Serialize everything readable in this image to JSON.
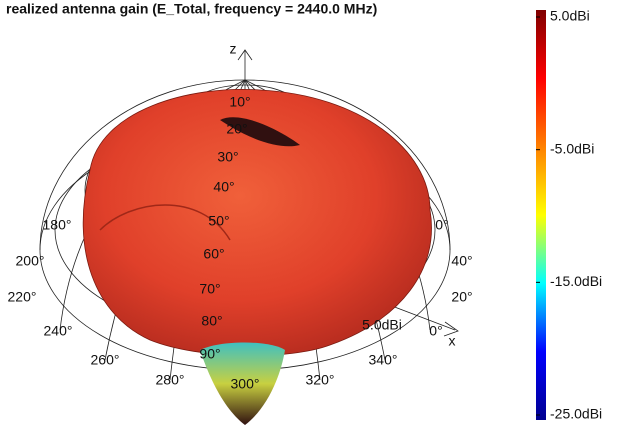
{
  "chart_data": {
    "type": "surface3d",
    "title": "realized antenna gain (E_Total, frequency = 2440.0 MHz)",
    "colorbar": {
      "lim": [
        -25,
        5
      ],
      "ticks": [
        {
          "value": 5,
          "label": "5.0dBi"
        },
        {
          "value": -5,
          "label": "-5.0dBi"
        },
        {
          "value": -15,
          "label": "-15.0dBi"
        },
        {
          "value": -25,
          "label": "-25.0dBi"
        }
      ],
      "colors": [
        "#00008f",
        "#0000ff",
        "#00ffff",
        "#ffff00",
        "#ff8000",
        "#ff0000",
        "#800000"
      ]
    },
    "theta_labels": [
      "10°",
      "20°",
      "30°",
      "40°",
      "50°",
      "60°",
      "70°",
      "80°",
      "90°"
    ],
    "phi_labels": [
      "180°",
      "200°",
      "220°",
      "240°",
      "260°",
      "280°",
      "300°",
      "320°",
      "340°",
      "0°",
      "20°",
      "40°",
      "0°"
    ],
    "radius_label": "5.0dBi",
    "axis_labels": {
      "z": "z",
      "x": "x"
    }
  }
}
